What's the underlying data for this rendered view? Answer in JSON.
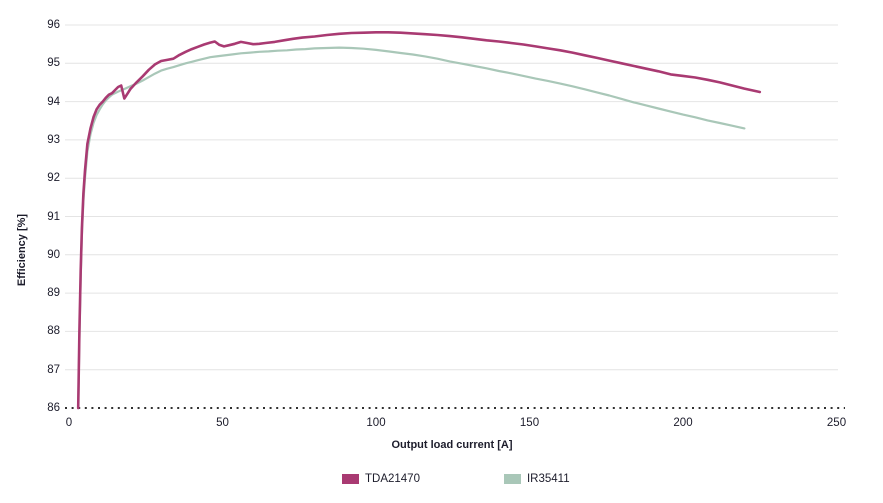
{
  "colors": {
    "series_tda21470": "#A93A72",
    "series_ir35411": "#A9C7B8",
    "grid": "#e4e4e4",
    "baseline": "#141414",
    "text": "#1c1c2b"
  },
  "chart_data": {
    "type": "line",
    "title": "",
    "xlabel": "Output load current [A]",
    "ylabel": "Efficiency [%]",
    "xlim": [
      0,
      250
    ],
    "ylim": [
      86,
      96
    ],
    "x_ticks": [
      0,
      50,
      100,
      150,
      200,
      250
    ],
    "y_ticks": [
      86,
      87,
      88,
      89,
      90,
      91,
      92,
      93,
      94,
      95,
      96
    ],
    "grid": "horizontal-only",
    "baseline_style": "dotted",
    "legend_position": "bottom-center",
    "series": [
      {
        "name": "TDA21470",
        "color": "#A93A72",
        "points": [
          [
            3,
            86.0
          ],
          [
            3.4,
            88.0
          ],
          [
            3.8,
            89.6
          ],
          [
            4.2,
            90.7
          ],
          [
            4.7,
            91.6
          ],
          [
            5.2,
            92.2
          ],
          [
            6,
            92.9
          ],
          [
            7,
            93.3
          ],
          [
            8,
            93.6
          ],
          [
            9,
            93.8
          ],
          [
            10,
            93.92
          ],
          [
            11,
            94.0
          ],
          [
            12,
            94.1
          ],
          [
            13,
            94.18
          ],
          [
            14,
            94.22
          ],
          [
            15,
            94.3
          ],
          [
            16,
            94.38
          ],
          [
            17,
            94.42
          ],
          [
            18,
            94.08
          ],
          [
            19,
            94.2
          ],
          [
            20,
            94.33
          ],
          [
            22,
            94.5
          ],
          [
            24,
            94.66
          ],
          [
            26,
            94.83
          ],
          [
            28,
            94.97
          ],
          [
            30,
            95.06
          ],
          [
            32,
            95.09
          ],
          [
            34,
            95.12
          ],
          [
            36,
            95.22
          ],
          [
            38,
            95.3
          ],
          [
            40,
            95.37
          ],
          [
            42,
            95.43
          ],
          [
            44,
            95.49
          ],
          [
            46,
            95.54
          ],
          [
            47.5,
            95.57
          ],
          [
            49,
            95.48
          ],
          [
            50.5,
            95.44
          ],
          [
            52,
            95.47
          ],
          [
            54,
            95.51
          ],
          [
            56,
            95.56
          ],
          [
            58,
            95.53
          ],
          [
            60,
            95.5
          ],
          [
            62,
            95.51
          ],
          [
            64,
            95.53
          ],
          [
            67,
            95.56
          ],
          [
            70,
            95.6
          ],
          [
            73,
            95.64
          ],
          [
            76,
            95.67
          ],
          [
            80,
            95.7
          ],
          [
            84,
            95.74
          ],
          [
            88,
            95.77
          ],
          [
            92,
            95.79
          ],
          [
            96,
            95.8
          ],
          [
            100,
            95.81
          ],
          [
            104,
            95.81
          ],
          [
            108,
            95.8
          ],
          [
            112,
            95.78
          ],
          [
            116,
            95.76
          ],
          [
            120,
            95.74
          ],
          [
            124,
            95.71
          ],
          [
            128,
            95.68
          ],
          [
            132,
            95.64
          ],
          [
            136,
            95.6
          ],
          [
            140,
            95.57
          ],
          [
            144,
            95.53
          ],
          [
            148,
            95.49
          ],
          [
            152,
            95.44
          ],
          [
            156,
            95.39
          ],
          [
            160,
            95.34
          ],
          [
            164,
            95.28
          ],
          [
            168,
            95.21
          ],
          [
            172,
            95.14
          ],
          [
            176,
            95.07
          ],
          [
            180,
            95.0
          ],
          [
            184,
            94.93
          ],
          [
            188,
            94.86
          ],
          [
            192,
            94.79
          ],
          [
            196,
            94.71
          ],
          [
            200,
            94.67
          ],
          [
            204,
            94.63
          ],
          [
            208,
            94.57
          ],
          [
            212,
            94.5
          ],
          [
            216,
            94.42
          ],
          [
            220,
            94.34
          ],
          [
            225,
            94.25
          ]
        ]
      },
      {
        "name": "IR35411",
        "color": "#A9C7B8",
        "points": [
          [
            3,
            86.0
          ],
          [
            3.4,
            87.8
          ],
          [
            3.8,
            89.4
          ],
          [
            4.2,
            90.5
          ],
          [
            4.7,
            91.4
          ],
          [
            5.2,
            92.0
          ],
          [
            6,
            92.7
          ],
          [
            7,
            93.15
          ],
          [
            8,
            93.45
          ],
          [
            9,
            93.65
          ],
          [
            10,
            93.8
          ],
          [
            11,
            93.93
          ],
          [
            12,
            94.03
          ],
          [
            13,
            94.11
          ],
          [
            14,
            94.18
          ],
          [
            16,
            94.26
          ],
          [
            18,
            94.33
          ],
          [
            20,
            94.4
          ],
          [
            22,
            94.47
          ],
          [
            24,
            94.55
          ],
          [
            26,
            94.64
          ],
          [
            28,
            94.73
          ],
          [
            30,
            94.81
          ],
          [
            32,
            94.86
          ],
          [
            34,
            94.9
          ],
          [
            36,
            94.95
          ],
          [
            38,
            95.0
          ],
          [
            40,
            95.04
          ],
          [
            42,
            95.08
          ],
          [
            44,
            95.12
          ],
          [
            46,
            95.16
          ],
          [
            48,
            95.18
          ],
          [
            50,
            95.2
          ],
          [
            53,
            95.23
          ],
          [
            56,
            95.26
          ],
          [
            59,
            95.28
          ],
          [
            62,
            95.3
          ],
          [
            65,
            95.31
          ],
          [
            68,
            95.33
          ],
          [
            71,
            95.34
          ],
          [
            74,
            95.36
          ],
          [
            77,
            95.37
          ],
          [
            80,
            95.39
          ],
          [
            84,
            95.4
          ],
          [
            88,
            95.41
          ],
          [
            92,
            95.4
          ],
          [
            96,
            95.38
          ],
          [
            100,
            95.35
          ],
          [
            104,
            95.31
          ],
          [
            108,
            95.27
          ],
          [
            112,
            95.23
          ],
          [
            116,
            95.18
          ],
          [
            120,
            95.12
          ],
          [
            124,
            95.05
          ],
          [
            128,
            94.99
          ],
          [
            132,
            94.93
          ],
          [
            136,
            94.87
          ],
          [
            140,
            94.8
          ],
          [
            144,
            94.74
          ],
          [
            148,
            94.67
          ],
          [
            152,
            94.6
          ],
          [
            156,
            94.54
          ],
          [
            160,
            94.47
          ],
          [
            164,
            94.4
          ],
          [
            168,
            94.32
          ],
          [
            172,
            94.24
          ],
          [
            176,
            94.16
          ],
          [
            180,
            94.07
          ],
          [
            184,
            93.98
          ],
          [
            188,
            93.9
          ],
          [
            192,
            93.82
          ],
          [
            196,
            93.74
          ],
          [
            200,
            93.66
          ],
          [
            204,
            93.59
          ],
          [
            208,
            93.51
          ],
          [
            212,
            93.44
          ],
          [
            216,
            93.37
          ],
          [
            220,
            93.3
          ]
        ]
      }
    ]
  },
  "legend": {
    "items": [
      {
        "label": "TDA21470",
        "color": "#A93A72"
      },
      {
        "label": "IR35411",
        "color": "#A9C7B8"
      }
    ]
  }
}
